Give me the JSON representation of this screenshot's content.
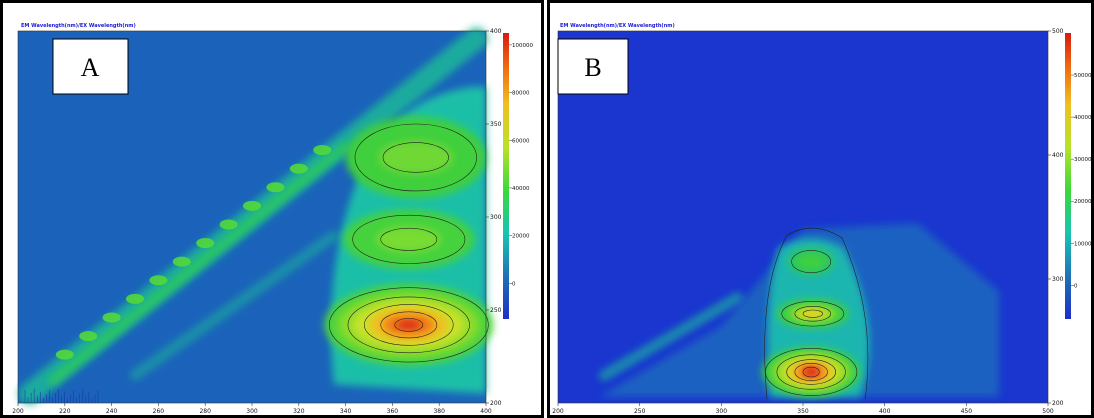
{
  "chart_data": [
    {
      "type": "heatmap",
      "panel_label": "A",
      "title": "EM Wavelength(nm)/EX Wavelength(nm)",
      "x_range": [
        200,
        400
      ],
      "x_ticks": [
        "200",
        "220",
        "240",
        "260",
        "280",
        "300",
        "320",
        "340",
        "360",
        "380",
        "400"
      ],
      "y_range": [
        200,
        400
      ],
      "y_ticks": [
        "200",
        "250",
        "300",
        "350",
        "400"
      ],
      "colorbar_range": [
        -15000,
        105000
      ],
      "colorbar_ticks": [
        "0",
        "20000",
        "40000",
        "60000",
        "80000",
        "100000"
      ],
      "peaks": [
        {
          "x": 367,
          "y": 242,
          "value": 100000
        },
        {
          "x": 367,
          "y": 287,
          "value": 28000
        },
        {
          "x": 370,
          "y": 332,
          "value": 26000
        }
      ]
    },
    {
      "type": "heatmap",
      "panel_label": "B",
      "title": "EM Wavelength(nm)/EX Wavelength(nm)",
      "x_range": [
        200,
        500
      ],
      "x_ticks": [
        "200",
        "250",
        "300",
        "350",
        "400",
        "450",
        "500"
      ],
      "y_range": [
        200,
        500
      ],
      "y_ticks": [
        "200",
        "300",
        "400",
        "500"
      ],
      "colorbar_range": [
        -80000,
        600000
      ],
      "colorbar_ticks": [
        "0",
        "100000",
        "200000",
        "300000",
        "400000",
        "500000"
      ],
      "peaks": [
        {
          "x": 355,
          "y": 225,
          "value": 520000
        },
        {
          "x": 356,
          "y": 272,
          "value": 240000
        },
        {
          "x": 355,
          "y": 314,
          "value": 160000
        }
      ]
    }
  ]
}
